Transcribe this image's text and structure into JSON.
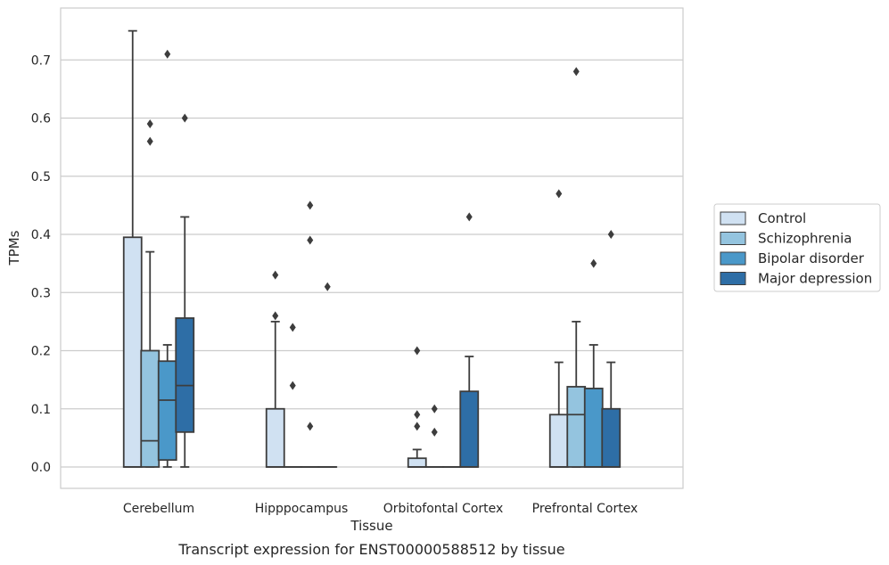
{
  "chart_data": {
    "type": "box",
    "xlabel": "Tissue",
    "ylabel": "TPMs",
    "caption": "Transcript expression for ENST00000588512 by tissue",
    "ylim": [
      -0.036,
      0.79
    ],
    "yticks": [
      "0.0",
      "0.1",
      "0.2",
      "0.3",
      "0.4",
      "0.5",
      "0.6",
      "0.7"
    ],
    "grid": true,
    "legend_position": "right",
    "categories": [
      "Cerebellum",
      "Hipppocampus",
      "Orbitofontal Cortex",
      "Prefrontal Cortex"
    ],
    "series": [
      {
        "name": "Control",
        "color": "#d0e1f2",
        "boxes": [
          {
            "q1": 0.0,
            "median": 0.0,
            "q3": 0.395,
            "whisker_low": 0.0,
            "whisker_high": 0.75,
            "outliers": []
          },
          {
            "q1": 0.0,
            "median": 0.0,
            "q3": 0.1,
            "whisker_low": 0.0,
            "whisker_high": 0.25,
            "outliers": [
              0.26,
              0.33
            ]
          },
          {
            "q1": 0.0,
            "median": 0.0,
            "q3": 0.015,
            "whisker_low": 0.0,
            "whisker_high": 0.03,
            "outliers": [
              0.07,
              0.09,
              0.2
            ]
          },
          {
            "q1": 0.0,
            "median": 0.0,
            "q3": 0.09,
            "whisker_low": 0.0,
            "whisker_high": 0.18,
            "outliers": [
              0.47
            ]
          }
        ]
      },
      {
        "name": "Schizophrenia",
        "color": "#94c4df",
        "boxes": [
          {
            "q1": 0.0,
            "median": 0.045,
            "q3": 0.2,
            "whisker_low": 0.0,
            "whisker_high": 0.37,
            "outliers": [
              0.56,
              0.59
            ]
          },
          {
            "q1": 0.0,
            "median": 0.0,
            "q3": 0.0,
            "whisker_low": 0.0,
            "whisker_high": 0.0,
            "outliers": [
              0.14,
              0.24
            ]
          },
          {
            "q1": 0.0,
            "median": 0.0,
            "q3": 0.0,
            "whisker_low": 0.0,
            "whisker_high": 0.0,
            "outliers": [
              0.06,
              0.1
            ]
          },
          {
            "q1": 0.0,
            "median": 0.09,
            "q3": 0.138,
            "whisker_low": 0.0,
            "whisker_high": 0.25,
            "outliers": [
              0.68
            ]
          }
        ]
      },
      {
        "name": "Bipolar disorder",
        "color": "#4a98c9",
        "boxes": [
          {
            "q1": 0.012,
            "median": 0.115,
            "q3": 0.182,
            "whisker_low": 0.0,
            "whisker_high": 0.21,
            "outliers": [
              0.71
            ]
          },
          {
            "q1": 0.0,
            "median": 0.0,
            "q3": 0.0,
            "whisker_low": 0.0,
            "whisker_high": 0.0,
            "outliers": [
              0.07,
              0.39,
              0.45
            ]
          },
          {
            "q1": 0.0,
            "median": 0.0,
            "q3": 0.0,
            "whisker_low": 0.0,
            "whisker_high": 0.0,
            "outliers": []
          },
          {
            "q1": 0.0,
            "median": 0.0,
            "q3": 0.135,
            "whisker_low": 0.0,
            "whisker_high": 0.21,
            "outliers": [
              0.35
            ]
          }
        ]
      },
      {
        "name": "Major depression",
        "color": "#2e6ea6",
        "boxes": [
          {
            "q1": 0.06,
            "median": 0.14,
            "q3": 0.256,
            "whisker_low": 0.0,
            "whisker_high": 0.43,
            "outliers": [
              0.6
            ]
          },
          {
            "q1": 0.0,
            "median": 0.0,
            "q3": 0.0,
            "whisker_low": 0.0,
            "whisker_high": 0.0,
            "outliers": [
              0.31
            ]
          },
          {
            "q1": 0.0,
            "median": 0.0,
            "q3": 0.13,
            "whisker_low": 0.0,
            "whisker_high": 0.19,
            "outliers": [
              0.43
            ]
          },
          {
            "q1": 0.0,
            "median": 0.0,
            "q3": 0.1,
            "whisker_low": 0.0,
            "whisker_high": 0.18,
            "outliers": [
              0.4
            ]
          }
        ]
      }
    ]
  }
}
